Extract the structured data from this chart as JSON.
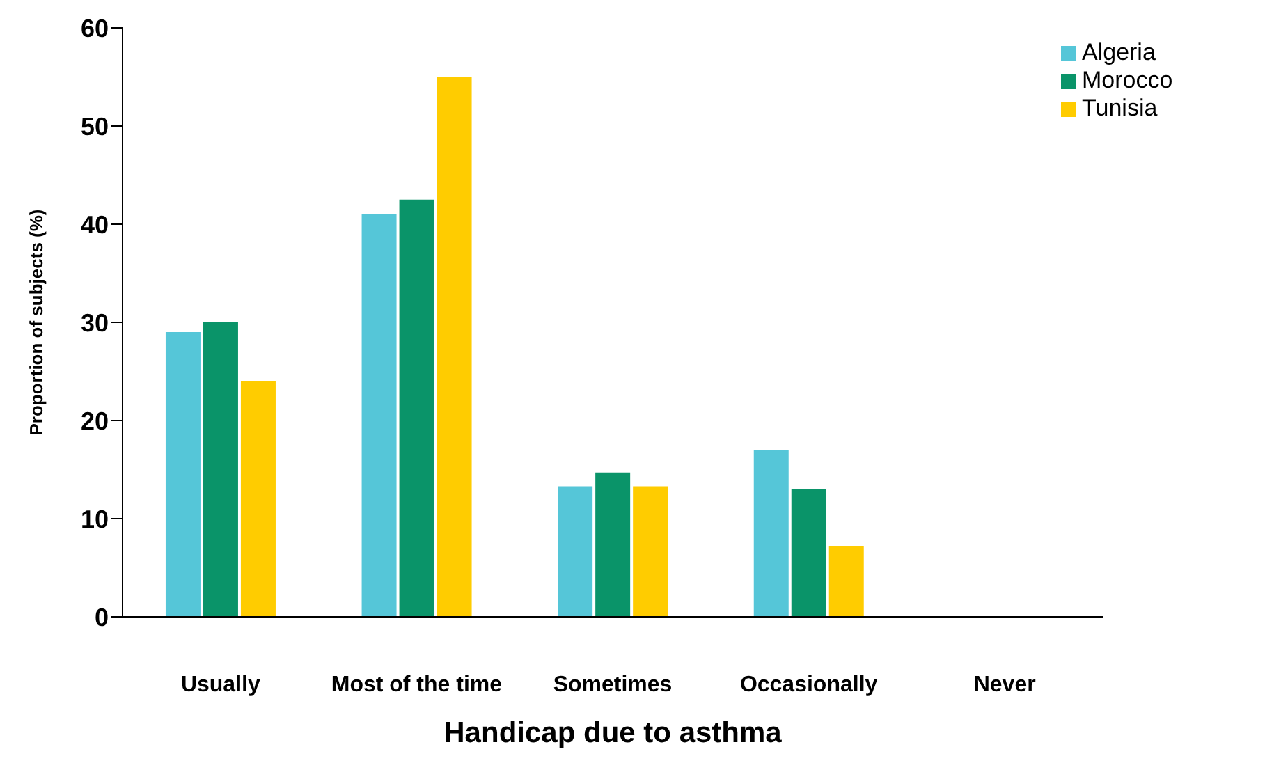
{
  "chart_data": {
    "type": "bar",
    "xlabel": "Handicap due to asthma",
    "ylabel": "Proportion of subjects (%)",
    "categories": [
      "Usually",
      "Most of the time",
      "Sometimes",
      "Occasionally",
      "Never"
    ],
    "series": [
      {
        "name": "Algeria",
        "color": "#55c6d8",
        "values": [
          29,
          41,
          13.3,
          17,
          0
        ]
      },
      {
        "name": "Morocco",
        "color": "#0a9469",
        "values": [
          30,
          42.5,
          14.7,
          13,
          0
        ]
      },
      {
        "name": "Tunisia",
        "color": "#ffcc00",
        "values": [
          24,
          55,
          13.3,
          7.2,
          0
        ]
      }
    ],
    "ylim": [
      0,
      60
    ],
    "yticks": [
      0,
      10,
      20,
      30,
      40,
      50,
      60
    ],
    "grid": false,
    "legend": "top right"
  }
}
